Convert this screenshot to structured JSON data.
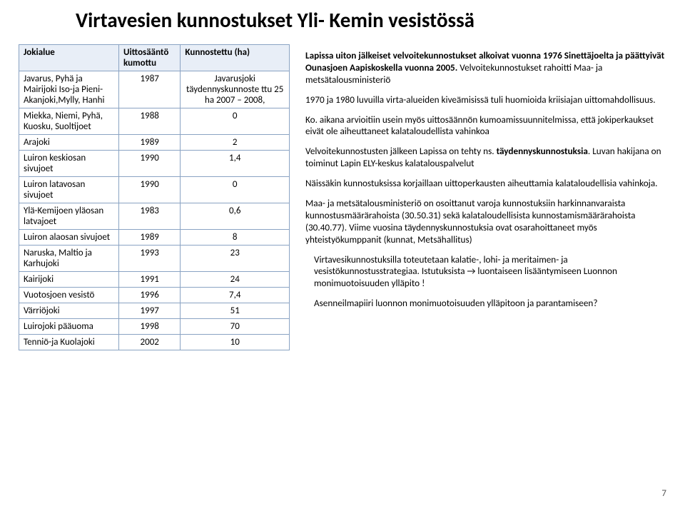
{
  "title": "Virtavesien kunnostukset Yli- Kemin vesistössä",
  "table": {
    "columns": [
      "Jokialue",
      "Uittosääntö kumottu",
      "Kunnostettu (ha)"
    ],
    "rows": [
      {
        "c0": "Javarus, Pyhä ja Mairijoki Iso-ja Pieni-Akanjoki,Mylly, Hanhi",
        "c1": "1987",
        "c2": "Javarusjoki täydennyskunnoste ttu 25 ha 2007 – 2008,"
      },
      {
        "c0": "Miekka, Niemi, Pyhä, Kuosku, Suoltijoet",
        "c1": "1988",
        "c2": "0"
      },
      {
        "c0": "Arajoki",
        "c1": "1989",
        "c2": "2"
      },
      {
        "c0": "Luiron keskiosan sivujoet",
        "c1": "1990",
        "c2": "1,4"
      },
      {
        "c0": "Luiron latavosan sivujoet",
        "c1": "1990",
        "c2": "0"
      },
      {
        "c0": "Ylä-Kemijoen yläosan latvajoet",
        "c1": "1983",
        "c2": "0,6"
      },
      {
        "c0": "  Luiron alaosan sivujoet",
        "c1": "1989",
        "c2": "8"
      },
      {
        "c0": "Naruska, Maltio ja Karhujoki",
        "c1": "1993",
        "c2": "23"
      },
      {
        "c0": "Kairijoki",
        "c1": "1991",
        "c2": "24"
      },
      {
        "c0": "Vuotosjoen vesistö",
        "c1": "1996",
        "c2": "7,4"
      },
      {
        "c0": "Värriöjoki",
        "c1": "1997",
        "c2": "51"
      },
      {
        "c0": "Luirojoki pääuoma",
        "c1": "1998",
        "c2": "70"
      },
      {
        "c0": "Tenniö-ja Kuolajoki",
        "c1": "2002",
        "c2": "10"
      }
    ]
  },
  "para": {
    "p1a": "Lapissa uiton jälkeiset velvoitekunnostukset alkoivat vuonna 1976 Sinettäjoelta ja päättyivät Ounasjoen Aapiskoskella vuonna 2005. ",
    "p1b": "Velvoitekunnostukset rahoitti Maa- ja metsätalousministeriö",
    "p2": "1970 ja 1980 luvuilla virta-alueiden kiveämisissä tuli huomioida kriisiajan uittomahdollisuus.",
    "p3": "Ko. aikana arvioitiin usein myös  uittosäännön kumoamissuunnitelmissa, että jokiperkaukset eivät ole aiheuttaneet kalataloudellista vahinkoa",
    "p4a": "Velvoitekunnostusten jälkeen Lapissa on tehty ns. ",
    "p4b": "täydennyskunnostuksia",
    "p4c": ". Luvan hakijana on toiminut Lapin ELY-keskus kalatalouspalvelut",
    "p5": "Näissäkin kunnostuksissa korjaillaan uittoperkausten aiheuttamia kalataloudellisia vahinkoja.",
    "p6": "Maa- ja metsätalousministeriö on osoittanut varoja kunnostuksiin harkinnanvaraista kunnostusmäärärahoista (30.50.31) sekä kalataloudellisista kunnostamismäärärahoista (30.40.77). Viime vuosina täydennyskunnostuksia ovat osarahoittaneet myös yhteistyökumppanit (kunnat, Metsähallitus)",
    "p7": "Virtavesikunnostuksilla toteutetaan kalatie-, lohi- ja meritaimen- ja vesistökunnostusstrategiaa.  Istutuksista → luontaiseen lisääntymiseen Luonnon monimuotoisuuden ylläpito !",
    "p8": "Asenneilmapiiri luonnon monimuotoisuuden ylläpitoon ja parantamiseen?"
  },
  "page_number": "7"
}
